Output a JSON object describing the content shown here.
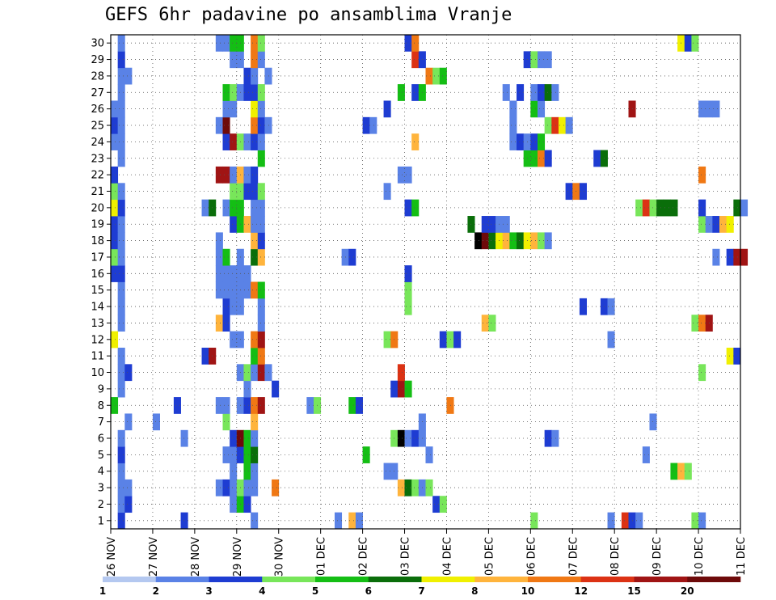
{
  "chart_data": {
    "type": "heatmap",
    "title": "GEFS 6hr padavine po ansamblima Vranje",
    "xlabel": "",
    "ylabel": "",
    "x_tick_labels": [
      "26 NOV",
      "27 NOV",
      "28 NOV",
      "29 NOV",
      "30 NOV",
      "01 DEC",
      "02 DEC",
      "03 DEC",
      "04 DEC",
      "05 DEC",
      "06 DEC",
      "07 DEC",
      "08 DEC",
      "09 DEC",
      "10 DEC",
      "11 DEC"
    ],
    "y_tick_labels": [
      "1",
      "2",
      "3",
      "4",
      "5",
      "6",
      "7",
      "8",
      "9",
      "10",
      "11",
      "12",
      "13",
      "14",
      "15",
      "16",
      "17",
      "18",
      "19",
      "20",
      "21",
      "22",
      "23",
      "24",
      "25",
      "26",
      "27",
      "28",
      "29",
      "30"
    ],
    "x_range": [
      "26 NOV 00Z",
      "11 DEC 00Z"
    ],
    "y_range": [
      1,
      30
    ],
    "grid": true,
    "colorbar": {
      "labels": [
        "1",
        "2",
        "3",
        "4",
        "5",
        "6",
        "7",
        "8",
        "10",
        "12",
        "15",
        "20"
      ],
      "colors": [
        "#b4c8f0",
        "#5a82e6",
        "#1e3cd2",
        "#78e65a",
        "#14be14",
        "#0a6e0a",
        "#f0f000",
        "#ffb43c",
        "#f07814",
        "#dc3214",
        "#a01414",
        "#6e0a0a"
      ]
    },
    "cells": [
      [
        1,
        1,
        2
      ],
      [
        1,
        10,
        2
      ],
      [
        1,
        20,
        1
      ],
      [
        1,
        32,
        1
      ],
      [
        1,
        34,
        7
      ],
      [
        1,
        35,
        1
      ],
      [
        1,
        60,
        3
      ],
      [
        1,
        71,
        1
      ],
      [
        1,
        73,
        9
      ],
      [
        1,
        74,
        2
      ],
      [
        1,
        75,
        1
      ],
      [
        1,
        83,
        3
      ],
      [
        1,
        84,
        1
      ],
      [
        2,
        1,
        1
      ],
      [
        2,
        2,
        2
      ],
      [
        2,
        17,
        1
      ],
      [
        2,
        18,
        4
      ],
      [
        2,
        19,
        2
      ],
      [
        2,
        46,
        2
      ],
      [
        2,
        47,
        3
      ],
      [
        3,
        1,
        1
      ],
      [
        3,
        2,
        1
      ],
      [
        3,
        15,
        1
      ],
      [
        3,
        16,
        2
      ],
      [
        3,
        17,
        1
      ],
      [
        3,
        18,
        3
      ],
      [
        3,
        19,
        1
      ],
      [
        3,
        20,
        1
      ],
      [
        3,
        23,
        8
      ],
      [
        3,
        41,
        7
      ],
      [
        3,
        42,
        5
      ],
      [
        3,
        43,
        3
      ],
      [
        3,
        44,
        1
      ],
      [
        3,
        45,
        3
      ],
      [
        4,
        1,
        1
      ],
      [
        4,
        17,
        1
      ],
      [
        4,
        19,
        4
      ],
      [
        4,
        20,
        1
      ],
      [
        4,
        39,
        1
      ],
      [
        4,
        40,
        1
      ],
      [
        4,
        80,
        4
      ],
      [
        4,
        81,
        7
      ],
      [
        4,
        82,
        3
      ],
      [
        5,
        1,
        2
      ],
      [
        5,
        16,
        1
      ],
      [
        5,
        17,
        1
      ],
      [
        5,
        18,
        2
      ],
      [
        5,
        19,
        4
      ],
      [
        5,
        20,
        5
      ],
      [
        5,
        36,
        4
      ],
      [
        5,
        45,
        1
      ],
      [
        5,
        76,
        1
      ],
      [
        6,
        1,
        1
      ],
      [
        6,
        10,
        1
      ],
      [
        6,
        17,
        2
      ],
      [
        6,
        18,
        11
      ],
      [
        6,
        19,
        4
      ],
      [
        6,
        20,
        1
      ],
      [
        6,
        40,
        3
      ],
      [
        6,
        41,
        12
      ],
      [
        6,
        42,
        1
      ],
      [
        6,
        43,
        2
      ],
      [
        6,
        44,
        1
      ],
      [
        6,
        62,
        2
      ],
      [
        6,
        63,
        1
      ],
      [
        7,
        2,
        1
      ],
      [
        7,
        6,
        1
      ],
      [
        7,
        16,
        3
      ],
      [
        7,
        20,
        7
      ],
      [
        7,
        44,
        1
      ],
      [
        7,
        77,
        1
      ],
      [
        8,
        0,
        4
      ],
      [
        8,
        9,
        2
      ],
      [
        8,
        15,
        1
      ],
      [
        8,
        16,
        1
      ],
      [
        8,
        18,
        1
      ],
      [
        8,
        19,
        2
      ],
      [
        8,
        20,
        8
      ],
      [
        8,
        21,
        10
      ],
      [
        8,
        28,
        1
      ],
      [
        8,
        29,
        3
      ],
      [
        8,
        34,
        4
      ],
      [
        8,
        35,
        2
      ],
      [
        8,
        48,
        8
      ],
      [
        9,
        1,
        1
      ],
      [
        9,
        19,
        1
      ],
      [
        9,
        23,
        2
      ],
      [
        9,
        40,
        2
      ],
      [
        9,
        41,
        10
      ],
      [
        9,
        42,
        4
      ],
      [
        10,
        1,
        1
      ],
      [
        10,
        2,
        2
      ],
      [
        10,
        18,
        1
      ],
      [
        10,
        19,
        3
      ],
      [
        10,
        20,
        1
      ],
      [
        10,
        21,
        10
      ],
      [
        10,
        22,
        1
      ],
      [
        10,
        41,
        9
      ],
      [
        10,
        84,
        3
      ],
      [
        11,
        1,
        1
      ],
      [
        11,
        13,
        2
      ],
      [
        11,
        14,
        10
      ],
      [
        11,
        20,
        4
      ],
      [
        11,
        21,
        8
      ],
      [
        11,
        88,
        6
      ],
      [
        11,
        89,
        2
      ],
      [
        12,
        0,
        6
      ],
      [
        12,
        17,
        1
      ],
      [
        12,
        18,
        1
      ],
      [
        12,
        20,
        8
      ],
      [
        12,
        21,
        10
      ],
      [
        12,
        39,
        3
      ],
      [
        12,
        40,
        8
      ],
      [
        12,
        47,
        2
      ],
      [
        12,
        48,
        3
      ],
      [
        12,
        49,
        2
      ],
      [
        12,
        71,
        1
      ],
      [
        13,
        1,
        1
      ],
      [
        13,
        15,
        7
      ],
      [
        13,
        16,
        2
      ],
      [
        13,
        21,
        1
      ],
      [
        13,
        53,
        7
      ],
      [
        13,
        54,
        3
      ],
      [
        13,
        83,
        3
      ],
      [
        13,
        84,
        8
      ],
      [
        13,
        85,
        10
      ],
      [
        14,
        1,
        1
      ],
      [
        14,
        16,
        2
      ],
      [
        14,
        17,
        1
      ],
      [
        14,
        18,
        1
      ],
      [
        14,
        21,
        1
      ],
      [
        14,
        42,
        3
      ],
      [
        14,
        67,
        2
      ],
      [
        14,
        70,
        2
      ],
      [
        14,
        71,
        1
      ],
      [
        15,
        1,
        1
      ],
      [
        15,
        15,
        1
      ],
      [
        15,
        16,
        1
      ],
      [
        15,
        17,
        1
      ],
      [
        15,
        18,
        1
      ],
      [
        15,
        19,
        1
      ],
      [
        15,
        20,
        8
      ],
      [
        15,
        21,
        4
      ],
      [
        15,
        42,
        3
      ],
      [
        16,
        0,
        2
      ],
      [
        16,
        1,
        2
      ],
      [
        16,
        15,
        1
      ],
      [
        16,
        16,
        1
      ],
      [
        16,
        17,
        1
      ],
      [
        16,
        18,
        1
      ],
      [
        16,
        19,
        1
      ],
      [
        16,
        42,
        2
      ],
      [
        17,
        0,
        3
      ],
      [
        17,
        1,
        1
      ],
      [
        17,
        15,
        1
      ],
      [
        17,
        16,
        4
      ],
      [
        17,
        18,
        1
      ],
      [
        17,
        20,
        5
      ],
      [
        17,
        21,
        7
      ],
      [
        17,
        33,
        1
      ],
      [
        17,
        34,
        2
      ],
      [
        17,
        86,
        1
      ],
      [
        17,
        88,
        2
      ],
      [
        17,
        89,
        10
      ],
      [
        17,
        90,
        10
      ],
      [
        18,
        0,
        2
      ],
      [
        18,
        1,
        1
      ],
      [
        18,
        15,
        1
      ],
      [
        18,
        20,
        7
      ],
      [
        18,
        21,
        2
      ],
      [
        18,
        52,
        12
      ],
      [
        18,
        53,
        11
      ],
      [
        18,
        54,
        5
      ],
      [
        18,
        55,
        6
      ],
      [
        18,
        56,
        7
      ],
      [
        18,
        57,
        4
      ],
      [
        18,
        58,
        5
      ],
      [
        18,
        59,
        6
      ],
      [
        18,
        60,
        7
      ],
      [
        18,
        61,
        3
      ],
      [
        18,
        62,
        1
      ],
      [
        19,
        0,
        2
      ],
      [
        19,
        1,
        1
      ],
      [
        19,
        17,
        2
      ],
      [
        19,
        18,
        4
      ],
      [
        19,
        19,
        7
      ],
      [
        19,
        20,
        1
      ],
      [
        19,
        21,
        1
      ],
      [
        19,
        51,
        5
      ],
      [
        19,
        53,
        2
      ],
      [
        19,
        54,
        2
      ],
      [
        19,
        55,
        1
      ],
      [
        19,
        56,
        1
      ],
      [
        19,
        84,
        3
      ],
      [
        19,
        85,
        1
      ],
      [
        19,
        86,
        2
      ],
      [
        19,
        87,
        7
      ],
      [
        19,
        88,
        6
      ],
      [
        20,
        0,
        6
      ],
      [
        20,
        1,
        2
      ],
      [
        20,
        13,
        1
      ],
      [
        20,
        14,
        5
      ],
      [
        20,
        16,
        1
      ],
      [
        20,
        17,
        4
      ],
      [
        20,
        18,
        4
      ],
      [
        20,
        20,
        1
      ],
      [
        20,
        21,
        1
      ],
      [
        20,
        42,
        2
      ],
      [
        20,
        43,
        4
      ],
      [
        20,
        75,
        3
      ],
      [
        20,
        76,
        9
      ],
      [
        20,
        77,
        3
      ],
      [
        20,
        78,
        5
      ],
      [
        20,
        79,
        5
      ],
      [
        20,
        80,
        5
      ],
      [
        20,
        84,
        2
      ],
      [
        20,
        89,
        5
      ],
      [
        20,
        90,
        1
      ],
      [
        21,
        0,
        3
      ],
      [
        21,
        1,
        1
      ],
      [
        21,
        17,
        3
      ],
      [
        21,
        18,
        3
      ],
      [
        21,
        19,
        2
      ],
      [
        21,
        20,
        2
      ],
      [
        21,
        21,
        3
      ],
      [
        21,
        39,
        1
      ],
      [
        21,
        65,
        2
      ],
      [
        21,
        66,
        8
      ],
      [
        21,
        67,
        2
      ],
      [
        22,
        0,
        2
      ],
      [
        22,
        15,
        10
      ],
      [
        22,
        16,
        10
      ],
      [
        22,
        17,
        1
      ],
      [
        22,
        18,
        7
      ],
      [
        22,
        19,
        1
      ],
      [
        22,
        20,
        2
      ],
      [
        22,
        41,
        1
      ],
      [
        22,
        42,
        1
      ],
      [
        22,
        84,
        8
      ],
      [
        23,
        1,
        1
      ],
      [
        23,
        21,
        4
      ],
      [
        23,
        59,
        4
      ],
      [
        23,
        60,
        4
      ],
      [
        23,
        61,
        8
      ],
      [
        23,
        62,
        2
      ],
      [
        23,
        69,
        2
      ],
      [
        23,
        70,
        5
      ],
      [
        24,
        0,
        1
      ],
      [
        24,
        1,
        1
      ],
      [
        24,
        16,
        2
      ],
      [
        24,
        17,
        10
      ],
      [
        24,
        18,
        3
      ],
      [
        24,
        19,
        1
      ],
      [
        24,
        20,
        2
      ],
      [
        24,
        21,
        1
      ],
      [
        24,
        43,
        7
      ],
      [
        24,
        57,
        1
      ],
      [
        24,
        58,
        2
      ],
      [
        24,
        59,
        1
      ],
      [
        24,
        60,
        2
      ],
      [
        24,
        61,
        4
      ],
      [
        25,
        0,
        2
      ],
      [
        25,
        1,
        1
      ],
      [
        25,
        15,
        1
      ],
      [
        25,
        16,
        11
      ],
      [
        25,
        20,
        8
      ],
      [
        25,
        21,
        2
      ],
      [
        25,
        22,
        1
      ],
      [
        25,
        36,
        2
      ],
      [
        25,
        37,
        1
      ],
      [
        25,
        57,
        1
      ],
      [
        25,
        62,
        3
      ],
      [
        25,
        63,
        9
      ],
      [
        25,
        64,
        6
      ],
      [
        25,
        65,
        1
      ],
      [
        26,
        0,
        1
      ],
      [
        26,
        1,
        1
      ],
      [
        26,
        16,
        1
      ],
      [
        26,
        17,
        1
      ],
      [
        26,
        20,
        6
      ],
      [
        26,
        21,
        1
      ],
      [
        26,
        39,
        2
      ],
      [
        26,
        57,
        1
      ],
      [
        26,
        60,
        4
      ],
      [
        26,
        61,
        1
      ],
      [
        26,
        74,
        10
      ],
      [
        26,
        84,
        1
      ],
      [
        26,
        85,
        1
      ],
      [
        26,
        86,
        1
      ],
      [
        27,
        1,
        1
      ],
      [
        27,
        16,
        4
      ],
      [
        27,
        17,
        3
      ],
      [
        27,
        18,
        1
      ],
      [
        27,
        19,
        2
      ],
      [
        27,
        20,
        2
      ],
      [
        27,
        21,
        3
      ],
      [
        27,
        41,
        4
      ],
      [
        27,
        43,
        2
      ],
      [
        27,
        44,
        4
      ],
      [
        27,
        56,
        1
      ],
      [
        27,
        58,
        2
      ],
      [
        27,
        60,
        1
      ],
      [
        27,
        61,
        2
      ],
      [
        27,
        62,
        5
      ],
      [
        27,
        63,
        1
      ],
      [
        28,
        1,
        1
      ],
      [
        28,
        2,
        1
      ],
      [
        28,
        19,
        2
      ],
      [
        28,
        20,
        1
      ],
      [
        28,
        22,
        1
      ],
      [
        28,
        45,
        8
      ],
      [
        28,
        46,
        3
      ],
      [
        28,
        47,
        4
      ],
      [
        29,
        1,
        2
      ],
      [
        29,
        17,
        1
      ],
      [
        29,
        18,
        1
      ],
      [
        29,
        20,
        8
      ],
      [
        29,
        21,
        1
      ],
      [
        29,
        43,
        9
      ],
      [
        29,
        44,
        2
      ],
      [
        29,
        59,
        2
      ],
      [
        29,
        60,
        3
      ],
      [
        29,
        61,
        1
      ],
      [
        29,
        62,
        1
      ],
      [
        30,
        1,
        1
      ],
      [
        30,
        15,
        1
      ],
      [
        30,
        16,
        1
      ],
      [
        30,
        17,
        4
      ],
      [
        30,
        18,
        4
      ],
      [
        30,
        20,
        8
      ],
      [
        30,
        21,
        3
      ],
      [
        30,
        42,
        2
      ],
      [
        30,
        43,
        8
      ],
      [
        30,
        81,
        6
      ],
      [
        30,
        82,
        2
      ],
      [
        30,
        83,
        3
      ]
    ]
  }
}
